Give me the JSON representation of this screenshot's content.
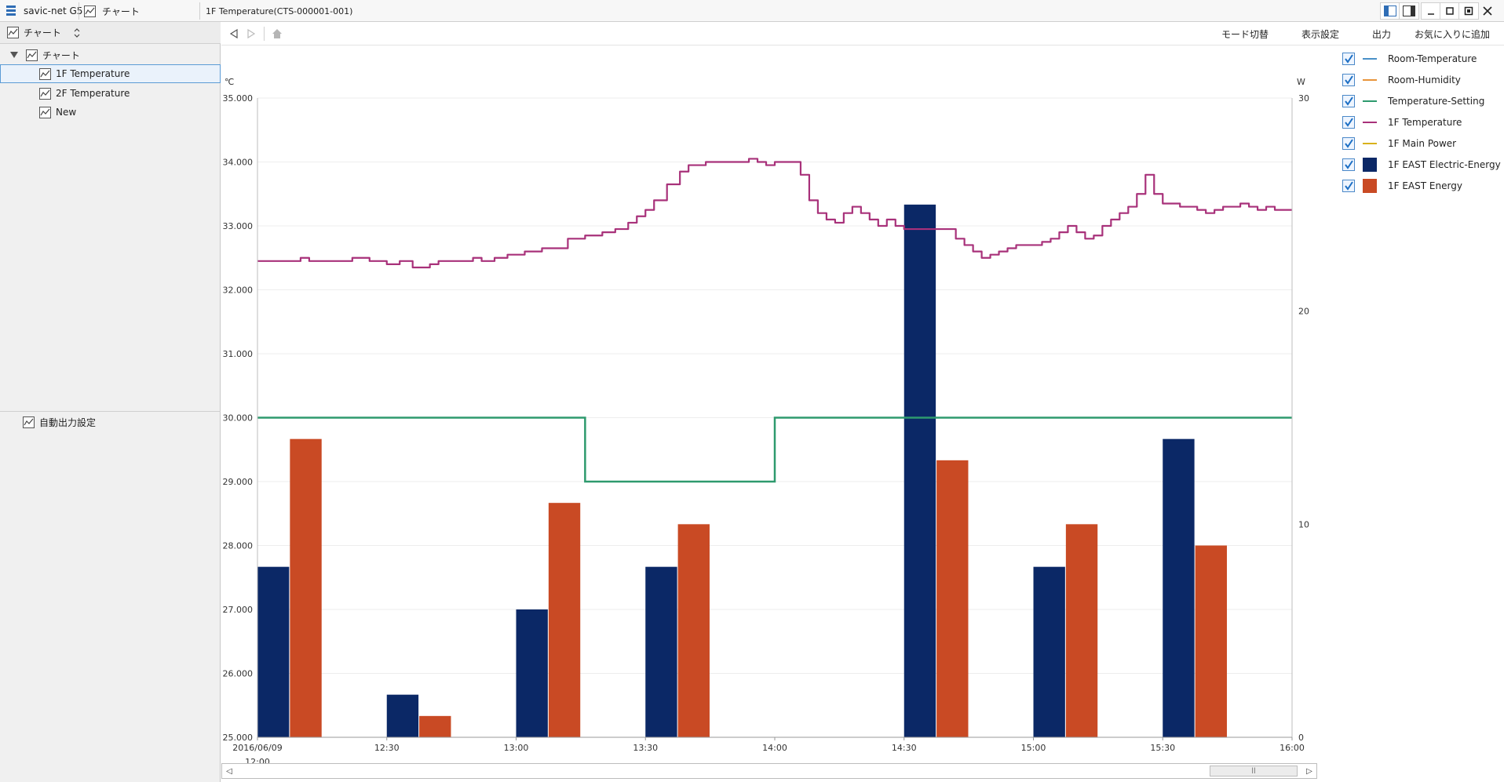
{
  "topbar": {
    "app_name": "savic-net G5",
    "module_tab": "チャート",
    "document_title": "1F Temperature(CTS-000001-001)"
  },
  "sidebar": {
    "header_label": "チャート",
    "root_label": "チャート",
    "items": [
      {
        "label": "1F Temperature"
      },
      {
        "label": "2F Temperature"
      },
      {
        "label": "New"
      }
    ],
    "auto_output_label": "自動出力設定"
  },
  "toolbar": {
    "mode_switch": "モード切替",
    "display_settings": "表示設定",
    "output": "出力",
    "add_favorite": "お気に入りに追加"
  },
  "legend": [
    {
      "label": "Room-Temperature",
      "kind": "line",
      "color": "#4a90c8",
      "checked": true
    },
    {
      "label": "Room-Humidity",
      "kind": "line",
      "color": "#e8943a",
      "checked": true
    },
    {
      "label": "Temperature-Setting",
      "kind": "line",
      "color": "#2e9a6e",
      "checked": true
    },
    {
      "label": "1F Temperature",
      "kind": "line",
      "color": "#a8317a",
      "checked": true
    },
    {
      "label": "1F Main Power",
      "kind": "line",
      "color": "#d9b11a",
      "checked": true
    },
    {
      "label": "1F EAST Electric-Energy",
      "kind": "box",
      "color": "#0b2866",
      "checked": true
    },
    {
      "label": "1F EAST Energy",
      "kind": "box",
      "color": "#c94a24",
      "checked": true
    }
  ],
  "chart_data": {
    "type": "bar+line",
    "y_left_unit": "℃",
    "y_right_unit": "W",
    "y_left_range": [
      25,
      35
    ],
    "y_left_ticks": [
      "35.000",
      "34.000",
      "33.000",
      "32.000",
      "31.000",
      "30.000",
      "29.000",
      "28.000",
      "27.000",
      "26.000",
      "25.000"
    ],
    "y_right_range": [
      0,
      30
    ],
    "y_right_ticks": [
      "30",
      "20",
      "10",
      "0"
    ],
    "x_range_minutes": [
      0,
      240
    ],
    "x_ticks": [
      {
        "min": 0,
        "label": "2016/06/09",
        "label2": "12:00"
      },
      {
        "min": 30,
        "label": "12:30"
      },
      {
        "min": 60,
        "label": "13:00"
      },
      {
        "min": 90,
        "label": "13:30"
      },
      {
        "min": 120,
        "label": "14:00"
      },
      {
        "min": 150,
        "label": "14:30"
      },
      {
        "min": 180,
        "label": "15:00"
      },
      {
        "min": 210,
        "label": "15:30"
      },
      {
        "min": 240,
        "label": "16:00"
      }
    ],
    "grid": true,
    "bar_categories": [
      "12:00",
      "12:30",
      "13:00",
      "13:30",
      "14:00",
      "14:30",
      "15:00",
      "15:30"
    ],
    "bar_series": [
      {
        "name": "1F EAST Electric-Energy",
        "color": "#0b2866",
        "values": [
          8,
          2,
          6,
          8,
          0,
          25,
          8,
          14
        ]
      },
      {
        "name": "1F EAST Energy",
        "color": "#c94a24",
        "values": [
          14,
          1,
          11,
          10,
          0,
          13,
          10,
          9
        ]
      }
    ],
    "temperature_setting": {
      "name": "Temperature-Setting",
      "color": "#2e9a6e",
      "steps": [
        [
          0,
          30.0
        ],
        [
          76,
          29.0
        ],
        [
          120,
          30.0
        ],
        [
          240,
          30.0
        ]
      ]
    },
    "temperature_1f": {
      "name": "1F Temperature",
      "color": "#a8317a",
      "points": [
        [
          0,
          32.45
        ],
        [
          6,
          32.45
        ],
        [
          10,
          32.5
        ],
        [
          12,
          32.45
        ],
        [
          20,
          32.45
        ],
        [
          22,
          32.5
        ],
        [
          26,
          32.45
        ],
        [
          30,
          32.4
        ],
        [
          33,
          32.45
        ],
        [
          36,
          32.35
        ],
        [
          40,
          32.4
        ],
        [
          42,
          32.45
        ],
        [
          48,
          32.45
        ],
        [
          50,
          32.5
        ],
        [
          52,
          32.45
        ],
        [
          55,
          32.5
        ],
        [
          58,
          32.55
        ],
        [
          62,
          32.6
        ],
        [
          66,
          32.65
        ],
        [
          70,
          32.65
        ],
        [
          72,
          32.8
        ],
        [
          76,
          32.85
        ],
        [
          80,
          32.9
        ],
        [
          83,
          32.95
        ],
        [
          86,
          33.05
        ],
        [
          88,
          33.15
        ],
        [
          90,
          33.25
        ],
        [
          92,
          33.4
        ],
        [
          95,
          33.65
        ],
        [
          98,
          33.85
        ],
        [
          100,
          33.95
        ],
        [
          104,
          34.0
        ],
        [
          112,
          34.0
        ],
        [
          114,
          34.05
        ],
        [
          116,
          34.0
        ],
        [
          118,
          33.95
        ],
        [
          120,
          34.0
        ],
        [
          124,
          34.0
        ],
        [
          126,
          33.8
        ],
        [
          128,
          33.4
        ],
        [
          130,
          33.2
        ],
        [
          132,
          33.1
        ],
        [
          134,
          33.05
        ],
        [
          136,
          33.2
        ],
        [
          138,
          33.3
        ],
        [
          140,
          33.2
        ],
        [
          142,
          33.1
        ],
        [
          144,
          33.0
        ],
        [
          146,
          33.1
        ],
        [
          148,
          33.0
        ],
        [
          150,
          32.95
        ],
        [
          152,
          32.95
        ],
        [
          156,
          32.95
        ],
        [
          160,
          32.95
        ],
        [
          162,
          32.8
        ],
        [
          164,
          32.7
        ],
        [
          166,
          32.6
        ],
        [
          168,
          32.5
        ],
        [
          170,
          32.55
        ],
        [
          172,
          32.6
        ],
        [
          174,
          32.65
        ],
        [
          176,
          32.7
        ],
        [
          180,
          32.7
        ],
        [
          182,
          32.75
        ],
        [
          184,
          32.8
        ],
        [
          186,
          32.9
        ],
        [
          188,
          33.0
        ],
        [
          190,
          32.9
        ],
        [
          192,
          32.8
        ],
        [
          194,
          32.85
        ],
        [
          196,
          33.0
        ],
        [
          198,
          33.1
        ],
        [
          200,
          33.2
        ],
        [
          202,
          33.3
        ],
        [
          204,
          33.5
        ],
        [
          206,
          33.8
        ],
        [
          208,
          33.5
        ],
        [
          210,
          33.35
        ],
        [
          214,
          33.3
        ],
        [
          216,
          33.3
        ],
        [
          218,
          33.25
        ],
        [
          220,
          33.2
        ],
        [
          222,
          33.25
        ],
        [
          224,
          33.3
        ],
        [
          226,
          33.3
        ],
        [
          228,
          33.35
        ],
        [
          230,
          33.3
        ],
        [
          232,
          33.25
        ],
        [
          234,
          33.3
        ],
        [
          236,
          33.25
        ],
        [
          240,
          33.25
        ]
      ]
    }
  }
}
